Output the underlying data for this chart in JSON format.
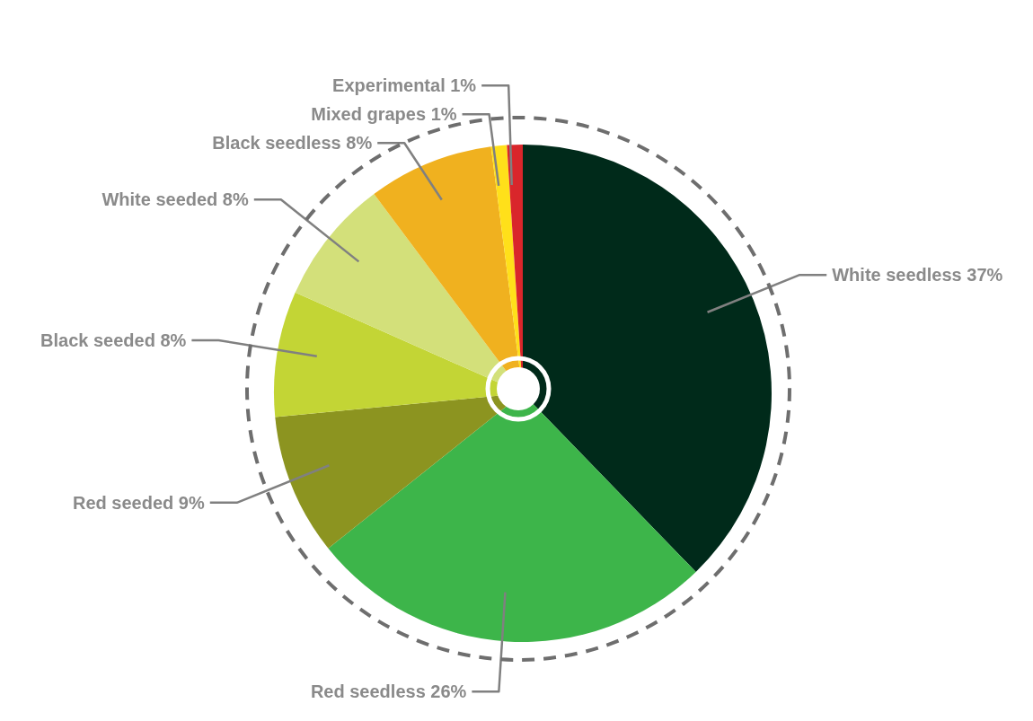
{
  "chart_data": {
    "type": "pie",
    "categories": [
      "White seedless",
      "Red seedless",
      "Red seeded",
      "Black seeded",
      "White seeded",
      "Black seedless",
      "Mixed grapes",
      "Experimental"
    ],
    "values": [
      37,
      26,
      9,
      8,
      8,
      8,
      1,
      1
    ],
    "value_labels": [
      "37%",
      "26%",
      "9%",
      "8%",
      "8%",
      "8%",
      "1%",
      "1%"
    ],
    "colors": [
      "#002a1a",
      "#3db54a",
      "#8c9420",
      "#c3d535",
      "#d3e07a",
      "#f0b11f",
      "#ffe01a",
      "#d9262b"
    ],
    "legend": false
  }
}
